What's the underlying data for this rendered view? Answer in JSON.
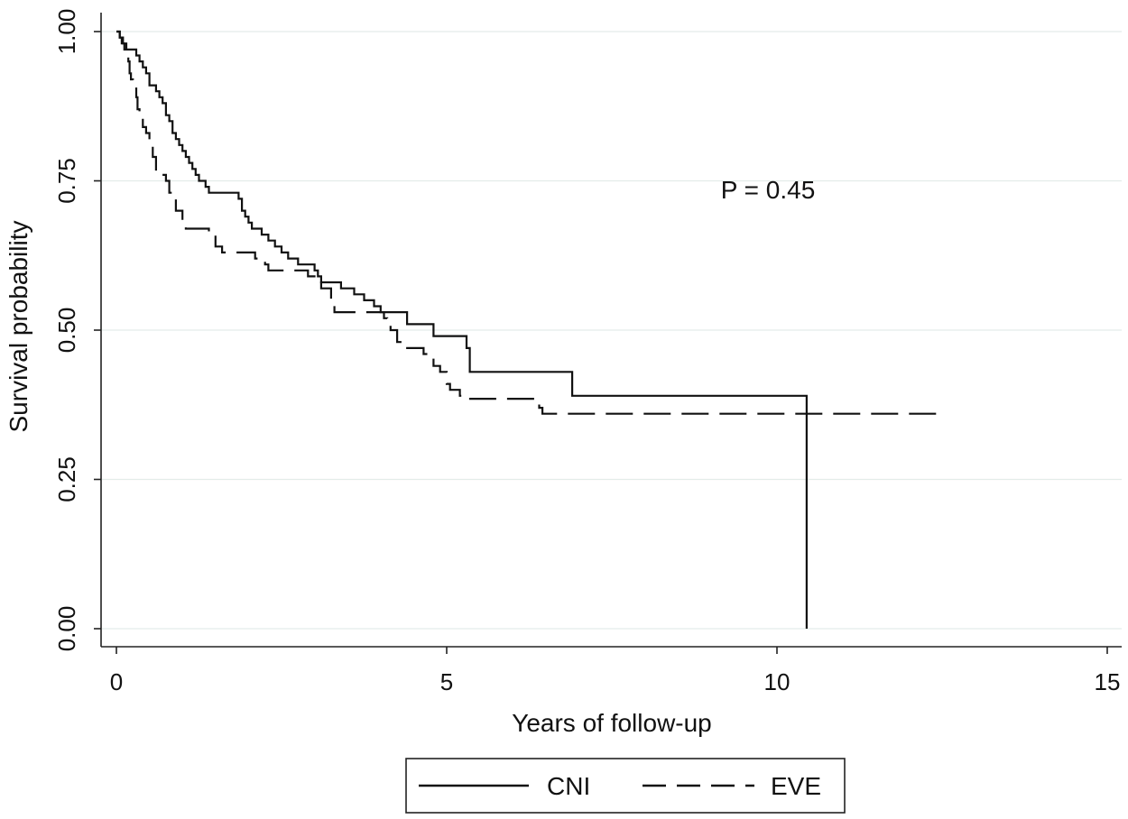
{
  "chart_data": {
    "type": "line",
    "title": "",
    "xlabel": "Years of follow-up",
    "ylabel": "Survival probability",
    "xlim": [
      0,
      15
    ],
    "ylim": [
      0,
      1
    ],
    "x_ticks": [
      0,
      5,
      10,
      15
    ],
    "x_tick_labels": [
      "0",
      "5",
      "10",
      "15"
    ],
    "y_ticks": [
      0,
      0.25,
      0.5,
      0.75,
      1
    ],
    "y_tick_labels": [
      "0.00",
      "0.25",
      "0.50",
      "0.75",
      "1.00"
    ],
    "grid": "horizontal",
    "annotation": "P = 0.45",
    "legend": {
      "placement": "bottom",
      "entries": [
        "CNI",
        "EVE"
      ]
    },
    "series": [
      {
        "name": "CNI",
        "style": "solid",
        "points": [
          [
            0,
            1.0
          ],
          [
            0.05,
            0.99
          ],
          [
            0.1,
            0.98
          ],
          [
            0.15,
            0.97
          ],
          [
            0.3,
            0.96
          ],
          [
            0.35,
            0.95
          ],
          [
            0.4,
            0.94
          ],
          [
            0.45,
            0.93
          ],
          [
            0.5,
            0.91
          ],
          [
            0.6,
            0.9
          ],
          [
            0.65,
            0.89
          ],
          [
            0.7,
            0.88
          ],
          [
            0.75,
            0.86
          ],
          [
            0.8,
            0.85
          ],
          [
            0.85,
            0.83
          ],
          [
            0.9,
            0.82
          ],
          [
            0.95,
            0.81
          ],
          [
            1.0,
            0.8
          ],
          [
            1.05,
            0.79
          ],
          [
            1.1,
            0.78
          ],
          [
            1.15,
            0.77
          ],
          [
            1.2,
            0.76
          ],
          [
            1.25,
            0.75
          ],
          [
            1.35,
            0.74
          ],
          [
            1.4,
            0.73
          ],
          [
            1.85,
            0.72
          ],
          [
            1.9,
            0.7
          ],
          [
            1.95,
            0.69
          ],
          [
            2.0,
            0.68
          ],
          [
            2.05,
            0.67
          ],
          [
            2.2,
            0.66
          ],
          [
            2.3,
            0.65
          ],
          [
            2.4,
            0.64
          ],
          [
            2.5,
            0.63
          ],
          [
            2.6,
            0.62
          ],
          [
            2.75,
            0.61
          ],
          [
            3.0,
            0.6
          ],
          [
            3.05,
            0.59
          ],
          [
            3.1,
            0.58
          ],
          [
            3.4,
            0.57
          ],
          [
            3.6,
            0.56
          ],
          [
            3.75,
            0.55
          ],
          [
            3.9,
            0.54
          ],
          [
            4.0,
            0.53
          ],
          [
            4.4,
            0.51
          ],
          [
            4.8,
            0.49
          ],
          [
            5.3,
            0.47
          ],
          [
            5.35,
            0.43
          ],
          [
            6.9,
            0.39
          ],
          [
            10.45,
            0.0
          ]
        ]
      },
      {
        "name": "EVE",
        "style": "dashed",
        "points": [
          [
            0,
            1.0
          ],
          [
            0.05,
            0.99
          ],
          [
            0.08,
            0.98
          ],
          [
            0.12,
            0.97
          ],
          [
            0.15,
            0.96
          ],
          [
            0.18,
            0.95
          ],
          [
            0.2,
            0.93
          ],
          [
            0.22,
            0.92
          ],
          [
            0.25,
            0.91
          ],
          [
            0.3,
            0.89
          ],
          [
            0.32,
            0.87
          ],
          [
            0.35,
            0.86
          ],
          [
            0.4,
            0.84
          ],
          [
            0.45,
            0.83
          ],
          [
            0.5,
            0.81
          ],
          [
            0.55,
            0.79
          ],
          [
            0.6,
            0.77
          ],
          [
            0.6,
            0.76
          ],
          [
            0.75,
            0.75
          ],
          [
            0.8,
            0.73
          ],
          [
            0.85,
            0.72
          ],
          [
            0.9,
            0.7
          ],
          [
            1.0,
            0.68
          ],
          [
            1.05,
            0.67
          ],
          [
            1.4,
            0.66
          ],
          [
            1.5,
            0.64
          ],
          [
            1.6,
            0.63
          ],
          [
            2.1,
            0.62
          ],
          [
            2.25,
            0.61
          ],
          [
            2.3,
            0.6
          ],
          [
            2.9,
            0.59
          ],
          [
            3.1,
            0.57
          ],
          [
            3.25,
            0.55
          ],
          [
            3.3,
            0.53
          ],
          [
            4.05,
            0.52
          ],
          [
            4.1,
            0.51
          ],
          [
            4.15,
            0.5
          ],
          [
            4.25,
            0.48
          ],
          [
            4.3,
            0.47
          ],
          [
            4.65,
            0.46
          ],
          [
            4.8,
            0.44
          ],
          [
            4.9,
            0.43
          ],
          [
            5.0,
            0.41
          ],
          [
            5.05,
            0.4
          ],
          [
            5.2,
            0.39
          ],
          [
            5.3,
            0.385
          ],
          [
            6.4,
            0.37
          ],
          [
            6.45,
            0.36
          ],
          [
            12.5,
            0.36
          ]
        ]
      }
    ]
  }
}
